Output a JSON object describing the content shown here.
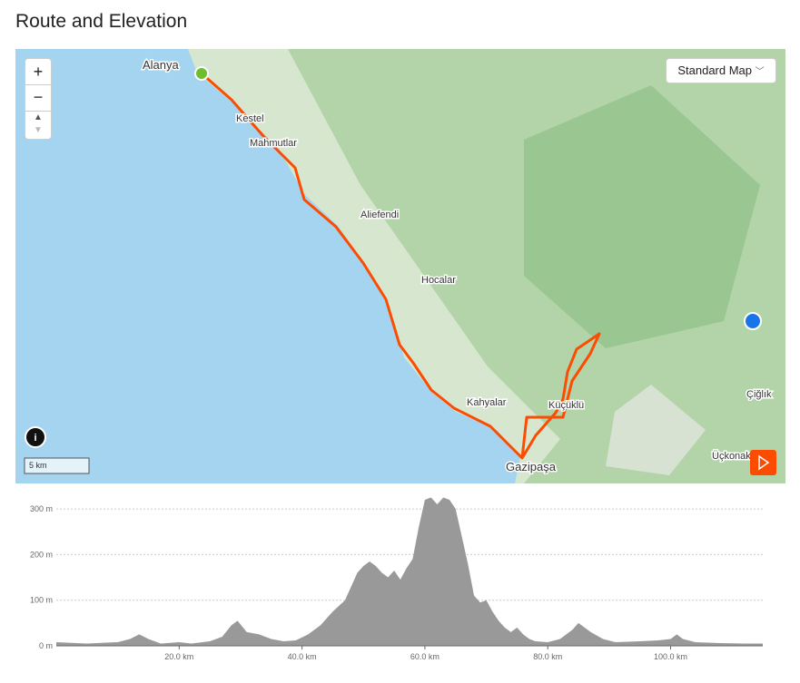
{
  "header": {
    "title": "Route and Elevation"
  },
  "map": {
    "layer_select": "Standard Map",
    "zoom_in": "+",
    "zoom_out": "−",
    "scale": "5 km",
    "info": "i",
    "labels": [
      {
        "text": "Alanya"
      },
      {
        "text": "Kestel"
      },
      {
        "text": "Mahmutlar"
      },
      {
        "text": "Aliefendi"
      },
      {
        "text": "Hocalar"
      },
      {
        "text": "Kahyalar"
      },
      {
        "text": "Küçüklü"
      },
      {
        "text": "Gazipaşa"
      },
      {
        "text": "Çiğlık"
      },
      {
        "text": "Üçkonak"
      }
    ]
  },
  "elevation": {
    "type": "area",
    "color": "#999999",
    "x": [
      0,
      5,
      10,
      12,
      13.5,
      15,
      17,
      20,
      22,
      25,
      27,
      28.5,
      29.5,
      31,
      33,
      35,
      37,
      39,
      41,
      43,
      45,
      47,
      48,
      49,
      50,
      51,
      52,
      53,
      54,
      55,
      56,
      57,
      58,
      59,
      60,
      61,
      62,
      63,
      64,
      65,
      66,
      67,
      68,
      69,
      70,
      71,
      72,
      73,
      74,
      75,
      76,
      77,
      78,
      80,
      82,
      84,
      85,
      86,
      87,
      89,
      91,
      95,
      98,
      100,
      101,
      102,
      104,
      108,
      112,
      115
    ],
    "values": [
      8,
      5,
      8,
      15,
      25,
      15,
      5,
      8,
      5,
      10,
      20,
      45,
      55,
      30,
      25,
      15,
      10,
      12,
      25,
      45,
      75,
      100,
      130,
      160,
      175,
      185,
      175,
      160,
      150,
      165,
      145,
      170,
      190,
      260,
      320,
      325,
      310,
      325,
      320,
      300,
      240,
      180,
      110,
      95,
      100,
      75,
      55,
      40,
      30,
      40,
      25,
      15,
      10,
      8,
      15,
      35,
      50,
      40,
      30,
      15,
      8,
      10,
      12,
      15,
      25,
      15,
      8,
      6,
      5,
      5
    ],
    "xlim": [
      0,
      115
    ],
    "ylim": [
      0,
      330
    ],
    "xticks": [
      {
        "value": 20,
        "label": "20.0 km"
      },
      {
        "value": 40,
        "label": "40.0 km"
      },
      {
        "value": 60,
        "label": "60.0 km"
      },
      {
        "value": 80,
        "label": "80.0 km"
      },
      {
        "value": 100,
        "label": "100.0 km"
      }
    ],
    "yticks": [
      {
        "value": 0,
        "label": "0 m"
      },
      {
        "value": 100,
        "label": "100 m"
      },
      {
        "value": 200,
        "label": "200 m"
      },
      {
        "value": 300,
        "label": "300 m"
      }
    ],
    "grid": true
  }
}
